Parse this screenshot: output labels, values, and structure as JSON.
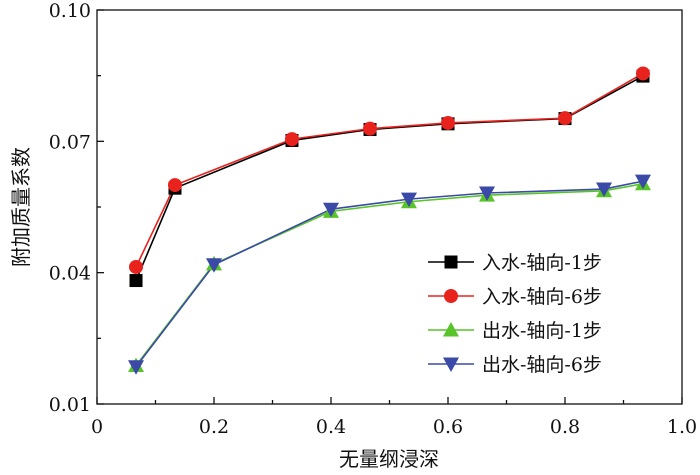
{
  "chart_data": {
    "type": "line",
    "title": "",
    "xlabel": "无量纲浸深",
    "ylabel": "附加质量系数",
    "xlim": [
      0,
      1.0
    ],
    "ylim": [
      0.01,
      0.1
    ],
    "x_ticks": [
      0,
      0.2,
      0.4,
      0.6,
      0.8,
      1.0
    ],
    "x_tick_labels": [
      "0",
      "0.2",
      "0.4",
      "0.6",
      "0.8",
      "1.0"
    ],
    "y_ticks": [
      0.01,
      0.04,
      0.07,
      0.1
    ],
    "y_tick_labels": [
      "0.01",
      "0.04",
      "0.07",
      "0.10"
    ],
    "grid": false,
    "legend_position": "lower-right",
    "series": [
      {
        "name": "入水-轴向-1步",
        "color": "#000000",
        "marker": "square",
        "x": [
          0.0667,
          0.1333,
          0.3333,
          0.4667,
          0.6,
          0.8,
          0.9333
        ],
        "y": [
          0.0382,
          0.0593,
          0.0702,
          0.0727,
          0.074,
          0.0752,
          0.0849
        ]
      },
      {
        "name": "入水-轴向-6步",
        "color": "#e8231e",
        "marker": "circle",
        "x": [
          0.0667,
          0.1333,
          0.3333,
          0.4667,
          0.6,
          0.8,
          0.9333
        ],
        "y": [
          0.0413,
          0.06,
          0.0705,
          0.0729,
          0.0742,
          0.0753,
          0.0855
        ]
      },
      {
        "name": "出水-轴向-1步",
        "color": "#58c42a",
        "marker": "triangle-up",
        "x": [
          0.0667,
          0.2,
          0.4,
          0.5333,
          0.6667,
          0.8667,
          0.9333
        ],
        "y": [
          0.0188,
          0.042,
          0.054,
          0.0562,
          0.0577,
          0.0587,
          0.0603
        ]
      },
      {
        "name": "出水-轴向-6步",
        "color": "#3b4aa6",
        "marker": "triangle-down",
        "x": [
          0.0667,
          0.2,
          0.4,
          0.5333,
          0.6667,
          0.8667,
          0.9333
        ],
        "y": [
          0.0185,
          0.0418,
          0.0545,
          0.0568,
          0.0582,
          0.0591,
          0.0609
        ]
      }
    ]
  }
}
